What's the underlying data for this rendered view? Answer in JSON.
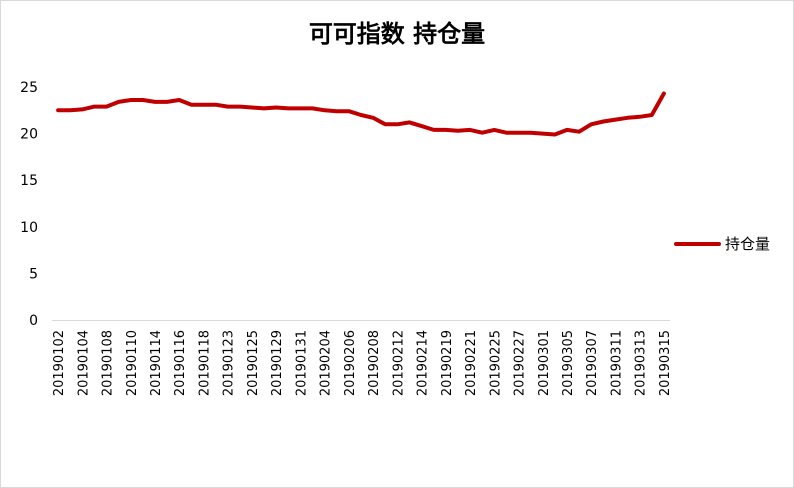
{
  "chart_data": {
    "type": "line",
    "title": "可可指数 持仓量",
    "xlabel": "",
    "ylabel": "",
    "ylim": [
      0,
      25
    ],
    "yticks": [
      0,
      5,
      10,
      15,
      20,
      25
    ],
    "grid": false,
    "legend_position": "right",
    "x": [
      "20190102",
      "20190103",
      "20190104",
      "20190107",
      "20190108",
      "20190109",
      "20190110",
      "20190111",
      "20190114",
      "20190115",
      "20190116",
      "20190117",
      "20190118",
      "20190121",
      "20190123",
      "20190124",
      "20190125",
      "20190128",
      "20190129",
      "20190130",
      "20190131",
      "20190201",
      "20190204",
      "20190205",
      "20190206",
      "20190207",
      "20190208",
      "20190211",
      "20190212",
      "20190213",
      "20190214",
      "20190215",
      "20190219",
      "20190220",
      "20190221",
      "20190222",
      "20190225",
      "20190226",
      "20190227",
      "20190228",
      "20190301",
      "20190304",
      "20190305",
      "20190306",
      "20190307",
      "20190308",
      "20190311",
      "20190312",
      "20190313",
      "20190314",
      "20190315"
    ],
    "x_tick_labels": [
      "20190102",
      "20190104",
      "20190108",
      "20190110",
      "20190114",
      "20190116",
      "20190118",
      "20190123",
      "20190125",
      "20190129",
      "20190131",
      "20190204",
      "20190206",
      "20190208",
      "20190212",
      "20190214",
      "20190219",
      "20190221",
      "20190225",
      "20190227",
      "20190301",
      "20190305",
      "20190307",
      "20190311",
      "20190313",
      "20190315"
    ],
    "series": [
      {
        "name": "持仓量",
        "color": "#c00000",
        "values": [
          22.5,
          22.5,
          22.6,
          22.9,
          22.9,
          23.4,
          23.6,
          23.6,
          23.4,
          23.4,
          23.6,
          23.1,
          23.1,
          23.1,
          22.9,
          22.9,
          22.8,
          22.7,
          22.8,
          22.7,
          22.7,
          22.7,
          22.5,
          22.4,
          22.4,
          22.0,
          21.7,
          21.0,
          21.0,
          21.2,
          20.8,
          20.4,
          20.4,
          20.3,
          20.4,
          20.1,
          20.4,
          20.1,
          20.1,
          20.1,
          20.0,
          19.9,
          20.4,
          20.2,
          21.0,
          21.3,
          21.5,
          21.7,
          21.8,
          22.0,
          24.3
        ]
      }
    ]
  }
}
